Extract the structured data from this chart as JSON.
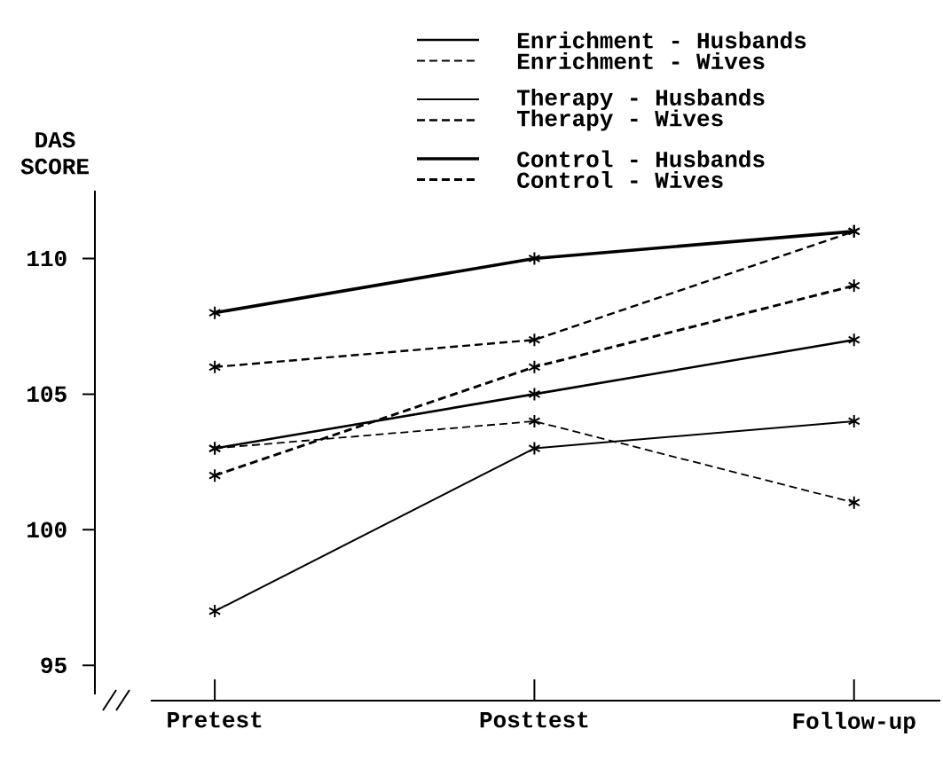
{
  "chart_data": {
    "type": "line",
    "ylabel": "DAS SCORE",
    "categories": [
      "Pretest",
      "Posttest",
      "Follow-up"
    ],
    "series": [
      {
        "name": "Enrichment - Husbands",
        "color": "#000000",
        "line_style": "solid",
        "values": [
          103,
          105,
          107
        ]
      },
      {
        "name": "Enrichment - Wives",
        "color": "#000000",
        "line_style": "dashed",
        "values": [
          103,
          104,
          101
        ]
      },
      {
        "name": "Therapy - Husbands",
        "color": "#000000",
        "line_style": "solid",
        "values": [
          97,
          103,
          104
        ]
      },
      {
        "name": "Therapy - Wives",
        "color": "#000000",
        "line_style": "dashed",
        "values": [
          106,
          107,
          111
        ]
      },
      {
        "name": "Control - Husbands",
        "color": "#000000",
        "line_style": "solid",
        "values": [
          108,
          110,
          111
        ]
      },
      {
        "name": "Control - Wives",
        "color": "#000000",
        "line_style": "dashed",
        "values": [
          102,
          106,
          109
        ]
      }
    ],
    "ylim": [
      93.7,
      112.5
    ],
    "yticks": [
      95,
      100,
      105,
      110
    ],
    "marker": "cross",
    "legend": "top",
    "grid": false
  }
}
